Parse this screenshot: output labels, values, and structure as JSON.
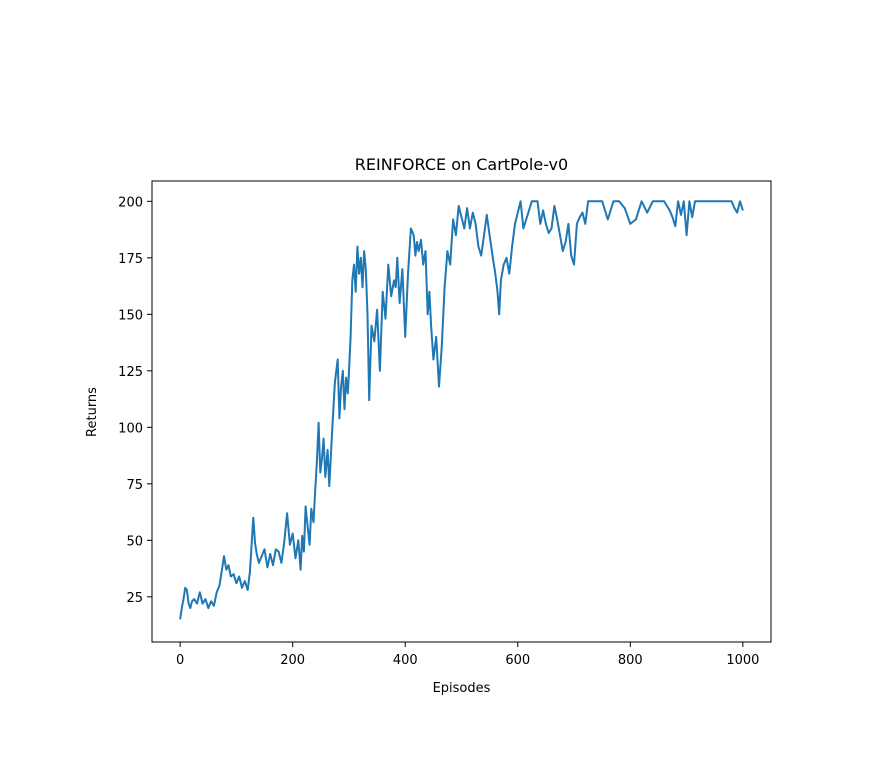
{
  "chart_data": {
    "type": "line",
    "title": "REINFORCE on CartPole-v0",
    "xlabel": "Episodes",
    "ylabel": "Returns",
    "xlim": [
      -50,
      1050
    ],
    "ylim": [
      5,
      209
    ],
    "xticks": [
      0,
      200,
      400,
      600,
      800,
      1000
    ],
    "yticks": [
      25,
      50,
      75,
      100,
      125,
      150,
      175,
      200
    ],
    "xtick_labels": [
      "0",
      "200",
      "400",
      "600",
      "800",
      "1000"
    ],
    "ytick_labels": [
      "25",
      "50",
      "75",
      "100",
      "125",
      "150",
      "175",
      "200"
    ],
    "grid": false,
    "legend": "none",
    "series": [
      {
        "color": "#1f77b4",
        "x": [
          0,
          3,
          6,
          9,
          12,
          15,
          18,
          21,
          25,
          30,
          35,
          40,
          45,
          50,
          55,
          60,
          65,
          70,
          75,
          78,
          82,
          86,
          90,
          95,
          100,
          105,
          110,
          115,
          120,
          124,
          127,
          130,
          133,
          136,
          140,
          145,
          150,
          155,
          160,
          165,
          170,
          175,
          180,
          185,
          190,
          195,
          200,
          205,
          210,
          214,
          217,
          220,
          223,
          227,
          230,
          233,
          237,
          240,
          243,
          246,
          249,
          252,
          255,
          258,
          262,
          265,
          270,
          275,
          280,
          283,
          286,
          289,
          292,
          295,
          298,
          300,
          303,
          306,
          309,
          312,
          315,
          318,
          321,
          324,
          327,
          330,
          333,
          336,
          340,
          345,
          350,
          355,
          360,
          365,
          370,
          375,
          380,
          383,
          386,
          390,
          395,
          400,
          405,
          410,
          415,
          418,
          421,
          424,
          428,
          432,
          436,
          440,
          443,
          446,
          450,
          455,
          460,
          465,
          470,
          475,
          480,
          485,
          490,
          495,
          500,
          505,
          510,
          515,
          520,
          525,
          530,
          535,
          540,
          545,
          550,
          555,
          560,
          564,
          567,
          570,
          575,
          580,
          585,
          590,
          595,
          600,
          605,
          610,
          615,
          620,
          625,
          630,
          635,
          640,
          645,
          650,
          655,
          660,
          665,
          670,
          675,
          680,
          685,
          690,
          695,
          700,
          705,
          710,
          715,
          720,
          725,
          730,
          740,
          750,
          760,
          770,
          780,
          790,
          800,
          810,
          820,
          830,
          840,
          850,
          860,
          870,
          875,
          880,
          885,
          890,
          895,
          900,
          905,
          910,
          915,
          920,
          930,
          940,
          950,
          960,
          970,
          980,
          985,
          990,
          995,
          1000
        ],
        "values": [
          15,
          20,
          24,
          29,
          28,
          22,
          20,
          23,
          24,
          22,
          27,
          22,
          24,
          20,
          23,
          21,
          27,
          30,
          38,
          43,
          37,
          39,
          34,
          35,
          31,
          34,
          29,
          32,
          28,
          36,
          48,
          60,
          49,
          44,
          40,
          43,
          46,
          38,
          44,
          39,
          46,
          45,
          40,
          49,
          62,
          48,
          53,
          42,
          50,
          37,
          52,
          45,
          65,
          55,
          48,
          64,
          58,
          72,
          85,
          102,
          80,
          86,
          95,
          78,
          90,
          74,
          98,
          120,
          130,
          104,
          118,
          125,
          108,
          122,
          115,
          125,
          140,
          165,
          172,
          160,
          180,
          168,
          175,
          162,
          178,
          170,
          150,
          112,
          145,
          138,
          152,
          125,
          160,
          148,
          172,
          158,
          165,
          162,
          175,
          155,
          170,
          140,
          168,
          188,
          185,
          176,
          182,
          178,
          183,
          172,
          178,
          150,
          160,
          145,
          130,
          140,
          118,
          136,
          162,
          178,
          172,
          192,
          185,
          198,
          193,
          188,
          197,
          188,
          195,
          190,
          180,
          176,
          185,
          194,
          185,
          176,
          168,
          160,
          150,
          165,
          172,
          175,
          168,
          180,
          190,
          195,
          200,
          188,
          192,
          196,
          200,
          200,
          200,
          190,
          196,
          190,
          186,
          188,
          198,
          192,
          185,
          178,
          182,
          190,
          176,
          172,
          190,
          193,
          195,
          190,
          200,
          200,
          200,
          200,
          192,
          200,
          200,
          197,
          190,
          192,
          200,
          195,
          200,
          200,
          200,
          196,
          193,
          189,
          200,
          194,
          200,
          185,
          200,
          193,
          200,
          200,
          200,
          200,
          200,
          200,
          200,
          200,
          197,
          195,
          200,
          196
        ]
      }
    ]
  }
}
